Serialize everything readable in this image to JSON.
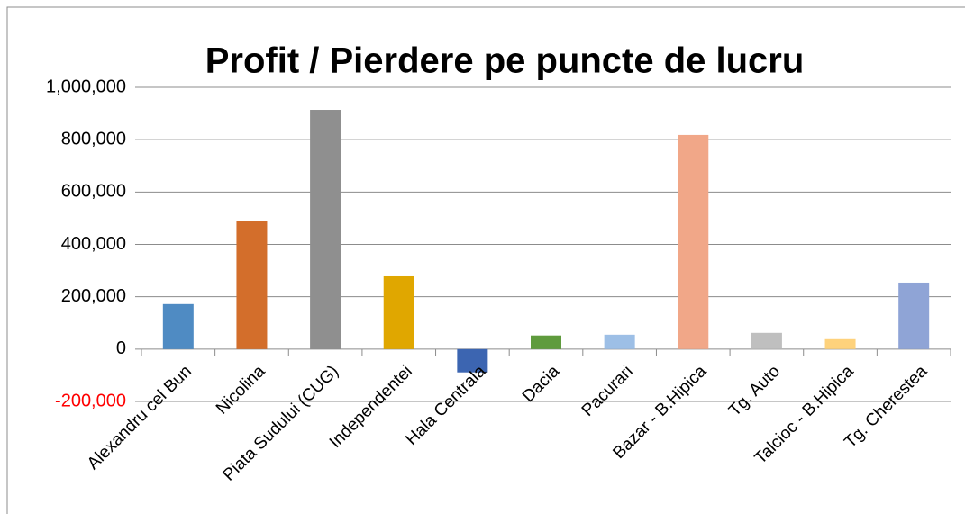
{
  "chart_data": {
    "type": "bar",
    "title": "Profit / Pierdere pe puncte de lucru",
    "categories": [
      "Alexandru cel Bun",
      "Nicolina",
      "Piata Sudului (CUG)",
      "Independentei",
      "Hala Centrala",
      "Dacia",
      "Pacurari",
      "Bazar - B.Hipica",
      "Tg. Auto",
      "Talcioc - B.Hipica",
      "Tg. Cherestea"
    ],
    "values": [
      172000,
      491000,
      914000,
      278000,
      -89000,
      52000,
      55000,
      818000,
      62000,
      38000,
      254000
    ],
    "colors": [
      "#4f8bc3",
      "#d36e2b",
      "#8f8f8f",
      "#e0a700",
      "#3c65b1",
      "#5f9b3d",
      "#9dbfe6",
      "#f1a788",
      "#bfbfbf",
      "#fed27c",
      "#8fa4d6"
    ],
    "ylim": [
      -200000,
      1000000
    ],
    "yticks": [
      {
        "value": -200000,
        "label": "-200,000"
      },
      0,
      {
        "value": 200000,
        "label": "200,000"
      },
      {
        "value": 400000,
        "label": "400,000"
      },
      {
        "value": 600000,
        "label": "600,000"
      },
      {
        "value": 800000,
        "label": "800,000"
      },
      {
        "value": 1000000,
        "label": "1,000,000"
      }
    ],
    "negative_tick_color": "#ff0000",
    "grid": true
  }
}
